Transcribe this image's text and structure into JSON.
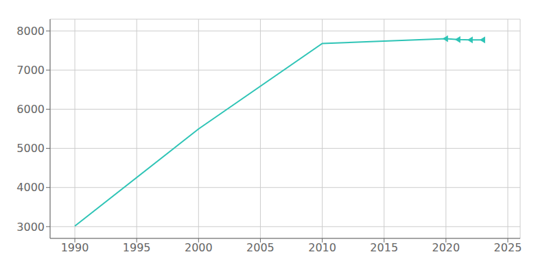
{
  "chart_data": {
    "type": "line",
    "x": [
      1990,
      2000,
      2010,
      2015,
      2020,
      2021,
      2022,
      2023
    ],
    "series": [
      {
        "type": "line",
        "color": "#2EC4B6",
        "values": [
          3015,
          5495,
          7680,
          7740,
          7802,
          7778,
          7771,
          7770
        ]
      },
      {
        "type": "scatter",
        "marker": "caretleft",
        "color": "#2EC4B6",
        "values": [
          null,
          null,
          null,
          null,
          7802,
          7778,
          7771,
          7770
        ]
      }
    ],
    "xlim": [
      1988,
      2026
    ],
    "ylim": [
      2700,
      8300
    ],
    "xticks": [
      1990,
      1995,
      2000,
      2005,
      2010,
      2015,
      2020,
      2025
    ],
    "yticks": [
      3000,
      4000,
      5000,
      6000,
      7000,
      8000
    ],
    "grid": true
  }
}
